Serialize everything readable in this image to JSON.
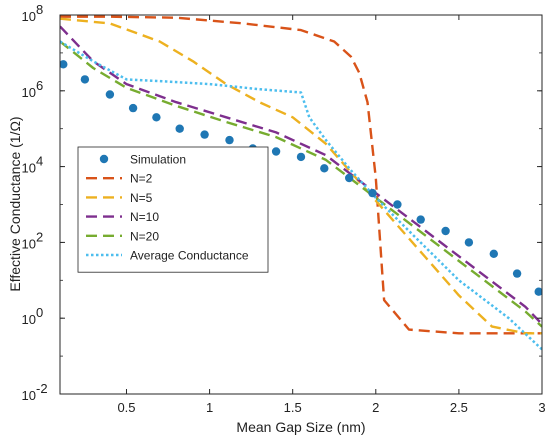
{
  "chart_data": {
    "type": "line",
    "xlabel": "Mean Gap Size (nm)",
    "ylabel": "Effective Conductance (1/Ω)",
    "xlim": [
      0.1,
      3.0
    ],
    "ylim": [
      0.01,
      100000000
    ],
    "yscale": "log",
    "x_ticks": [
      0.5,
      1,
      1.5,
      2,
      2.5,
      3
    ],
    "x_tick_labels": [
      "0.5",
      "1",
      "1.5",
      "2",
      "2.5",
      "3"
    ],
    "y_ticks": [
      0.01,
      1,
      100,
      10000,
      1000000,
      100000000
    ],
    "y_tick_parts": [
      {
        "base": "10",
        "exp": "-2"
      },
      {
        "base": "10",
        "exp": "0"
      },
      {
        "base": "10",
        "exp": "2"
      },
      {
        "base": "10",
        "exp": "4"
      },
      {
        "base": "10",
        "exp": "6"
      },
      {
        "base": "10",
        "exp": "8"
      }
    ],
    "grid": false,
    "box": true,
    "legend_position": "center-left",
    "series": [
      {
        "name": "Simulation",
        "kind": "scatter",
        "color": "#1f77b4",
        "x": [
          0.12,
          0.25,
          0.4,
          0.54,
          0.68,
          0.82,
          0.97,
          1.12,
          1.26,
          1.4,
          1.55,
          1.69,
          1.84,
          1.98,
          2.13,
          2.27,
          2.42,
          2.56,
          2.71,
          2.85,
          2.98
        ],
        "y": [
          5000000,
          2000000,
          800000,
          350000,
          200000,
          100000,
          70000,
          50000,
          30000,
          25000,
          18000,
          9000,
          5000,
          2000,
          1000,
          400,
          200,
          100,
          50,
          15,
          5
        ]
      },
      {
        "name": "N=2",
        "kind": "line",
        "style": "dashed",
        "color": "#d95319",
        "x": [
          0.1,
          0.4,
          0.8,
          1.2,
          1.55,
          1.75,
          1.85,
          1.9,
          1.95,
          2.0,
          2.05,
          2.2,
          2.5,
          3.0
        ],
        "y": [
          90000000,
          90000000,
          85000000,
          60000000,
          40000000,
          20000000,
          8000000,
          3000000,
          500000,
          5000,
          3,
          0.5,
          0.4,
          0.4
        ]
      },
      {
        "name": "N=5",
        "kind": "line",
        "style": "dashed",
        "color": "#edb120",
        "x": [
          0.1,
          0.4,
          0.7,
          0.9,
          1.1,
          1.3,
          1.5,
          1.7,
          1.9,
          2.1,
          2.3,
          2.5,
          2.7,
          2.9,
          3.0
        ],
        "y": [
          80000000,
          60000000,
          20000000,
          6000000,
          1500000,
          500000,
          200000,
          40000,
          4000,
          400,
          40,
          4,
          0.6,
          0.4,
          0.4
        ]
      },
      {
        "name": "N=10",
        "kind": "line",
        "style": "dashed",
        "color": "#7e2f8e",
        "x": [
          0.1,
          0.3,
          0.5,
          0.8,
          1.1,
          1.4,
          1.7,
          2.0,
          2.3,
          2.6,
          2.9,
          3.0
        ],
        "y": [
          50000000,
          6000000,
          1500000,
          500000,
          200000,
          80000,
          20000,
          2000,
          200,
          20,
          2,
          0.7
        ]
      },
      {
        "name": "N=20",
        "kind": "line",
        "style": "dashed",
        "color": "#77ac30",
        "x": [
          0.1,
          0.3,
          0.5,
          0.8,
          1.1,
          1.4,
          1.7,
          2.0,
          2.3,
          2.6,
          2.9,
          3.0
        ],
        "y": [
          20000000,
          4000000,
          1200000,
          400000,
          150000,
          60000,
          15000,
          1500,
          150,
          15,
          1.5,
          0.6
        ]
      },
      {
        "name": "Average Conductance",
        "kind": "line",
        "style": "dotted",
        "color": "#4dbeee",
        "x": [
          0.1,
          0.3,
          0.5,
          0.7,
          1.0,
          1.3,
          1.55,
          1.6,
          1.7,
          1.85,
          2.0,
          2.2,
          2.5,
          2.8,
          3.0
        ],
        "y": [
          20000000,
          6000000,
          2000000,
          1800000,
          1500000,
          1100000,
          900000,
          200000,
          50000,
          8000,
          1500,
          200,
          10,
          1,
          0.15
        ]
      }
    ]
  }
}
